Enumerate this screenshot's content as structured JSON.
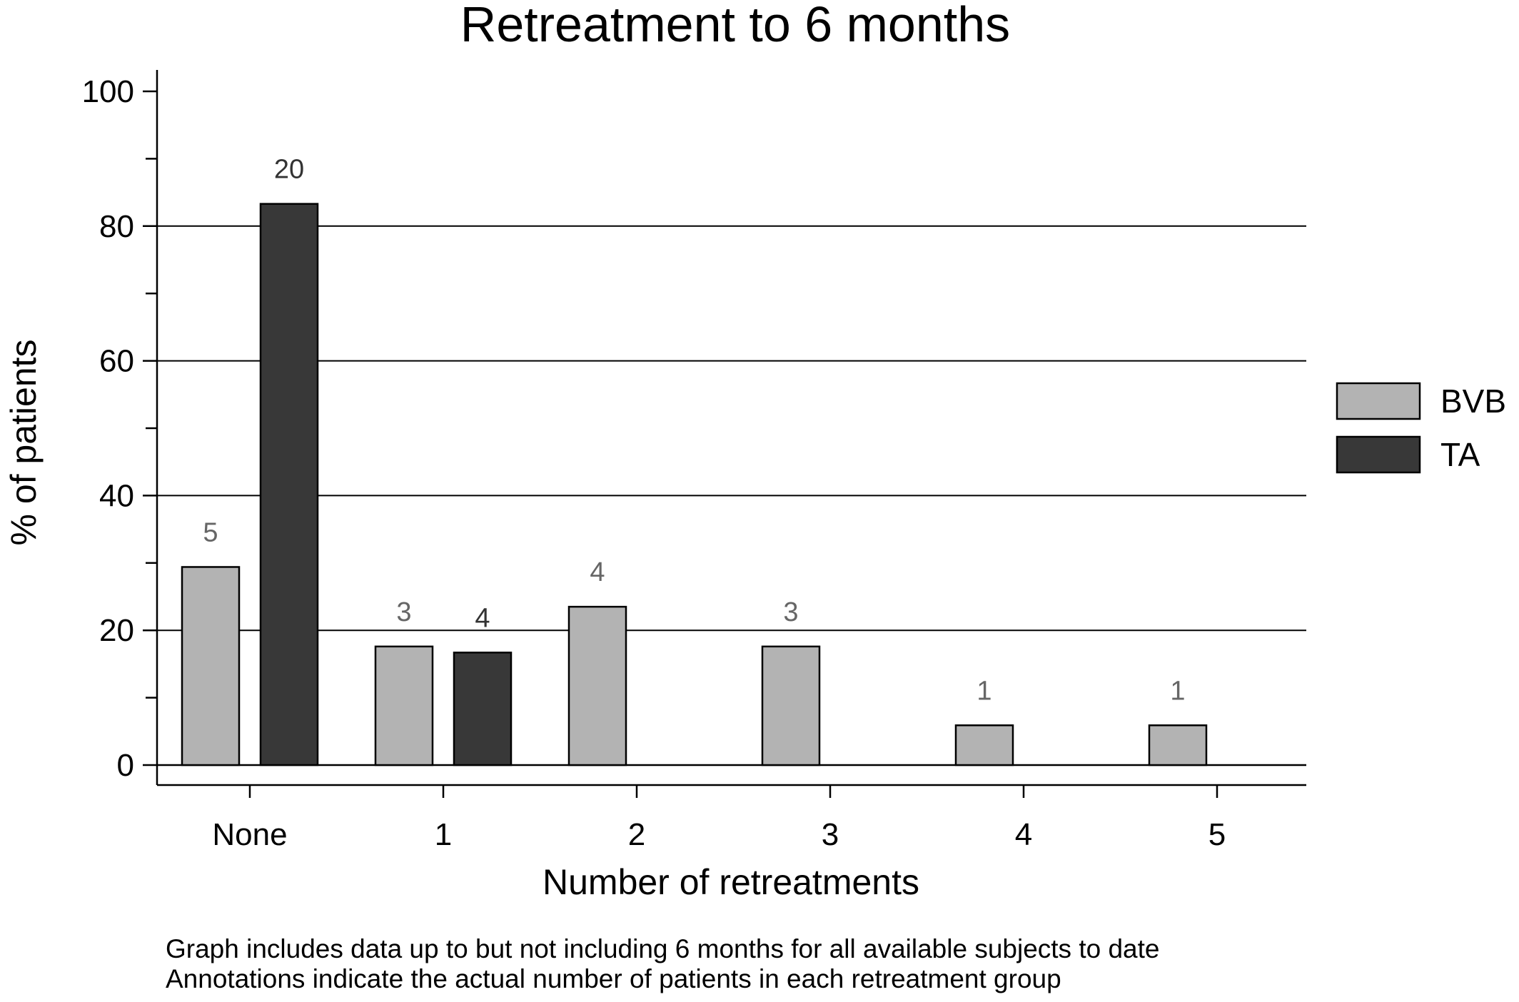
{
  "chart_data": {
    "type": "bar",
    "title": "Retreatment to 6 months",
    "xlabel": "Number of retreatments",
    "ylabel": "% of patients",
    "categories": [
      "None",
      "1",
      "2",
      "3",
      "4",
      "5"
    ],
    "ylim": [
      0,
      100
    ],
    "yticks": [
      0,
      20,
      40,
      60,
      80,
      100
    ],
    "grid": true,
    "legend_position": "right",
    "series": [
      {
        "name": "BVB",
        "color": "#b3b3b3",
        "values": [
          29.4,
          17.6,
          23.5,
          17.6,
          5.9,
          5.9
        ],
        "annotations": [
          "5",
          "3",
          "4",
          "3",
          "1",
          "1"
        ],
        "annotation_color": "#666666"
      },
      {
        "name": "TA",
        "color": "#383838",
        "values": [
          83.3,
          16.7,
          0,
          0,
          0,
          0
        ],
        "annotations": [
          "20",
          "4",
          "",
          "",
          "",
          ""
        ],
        "annotation_color": "#333333"
      }
    ]
  },
  "footnotes": [
    "Graph includes data up to but not including 6 months for all available subjects to date",
    "Annotations indicate the actual number of patients in each retreatment group"
  ]
}
